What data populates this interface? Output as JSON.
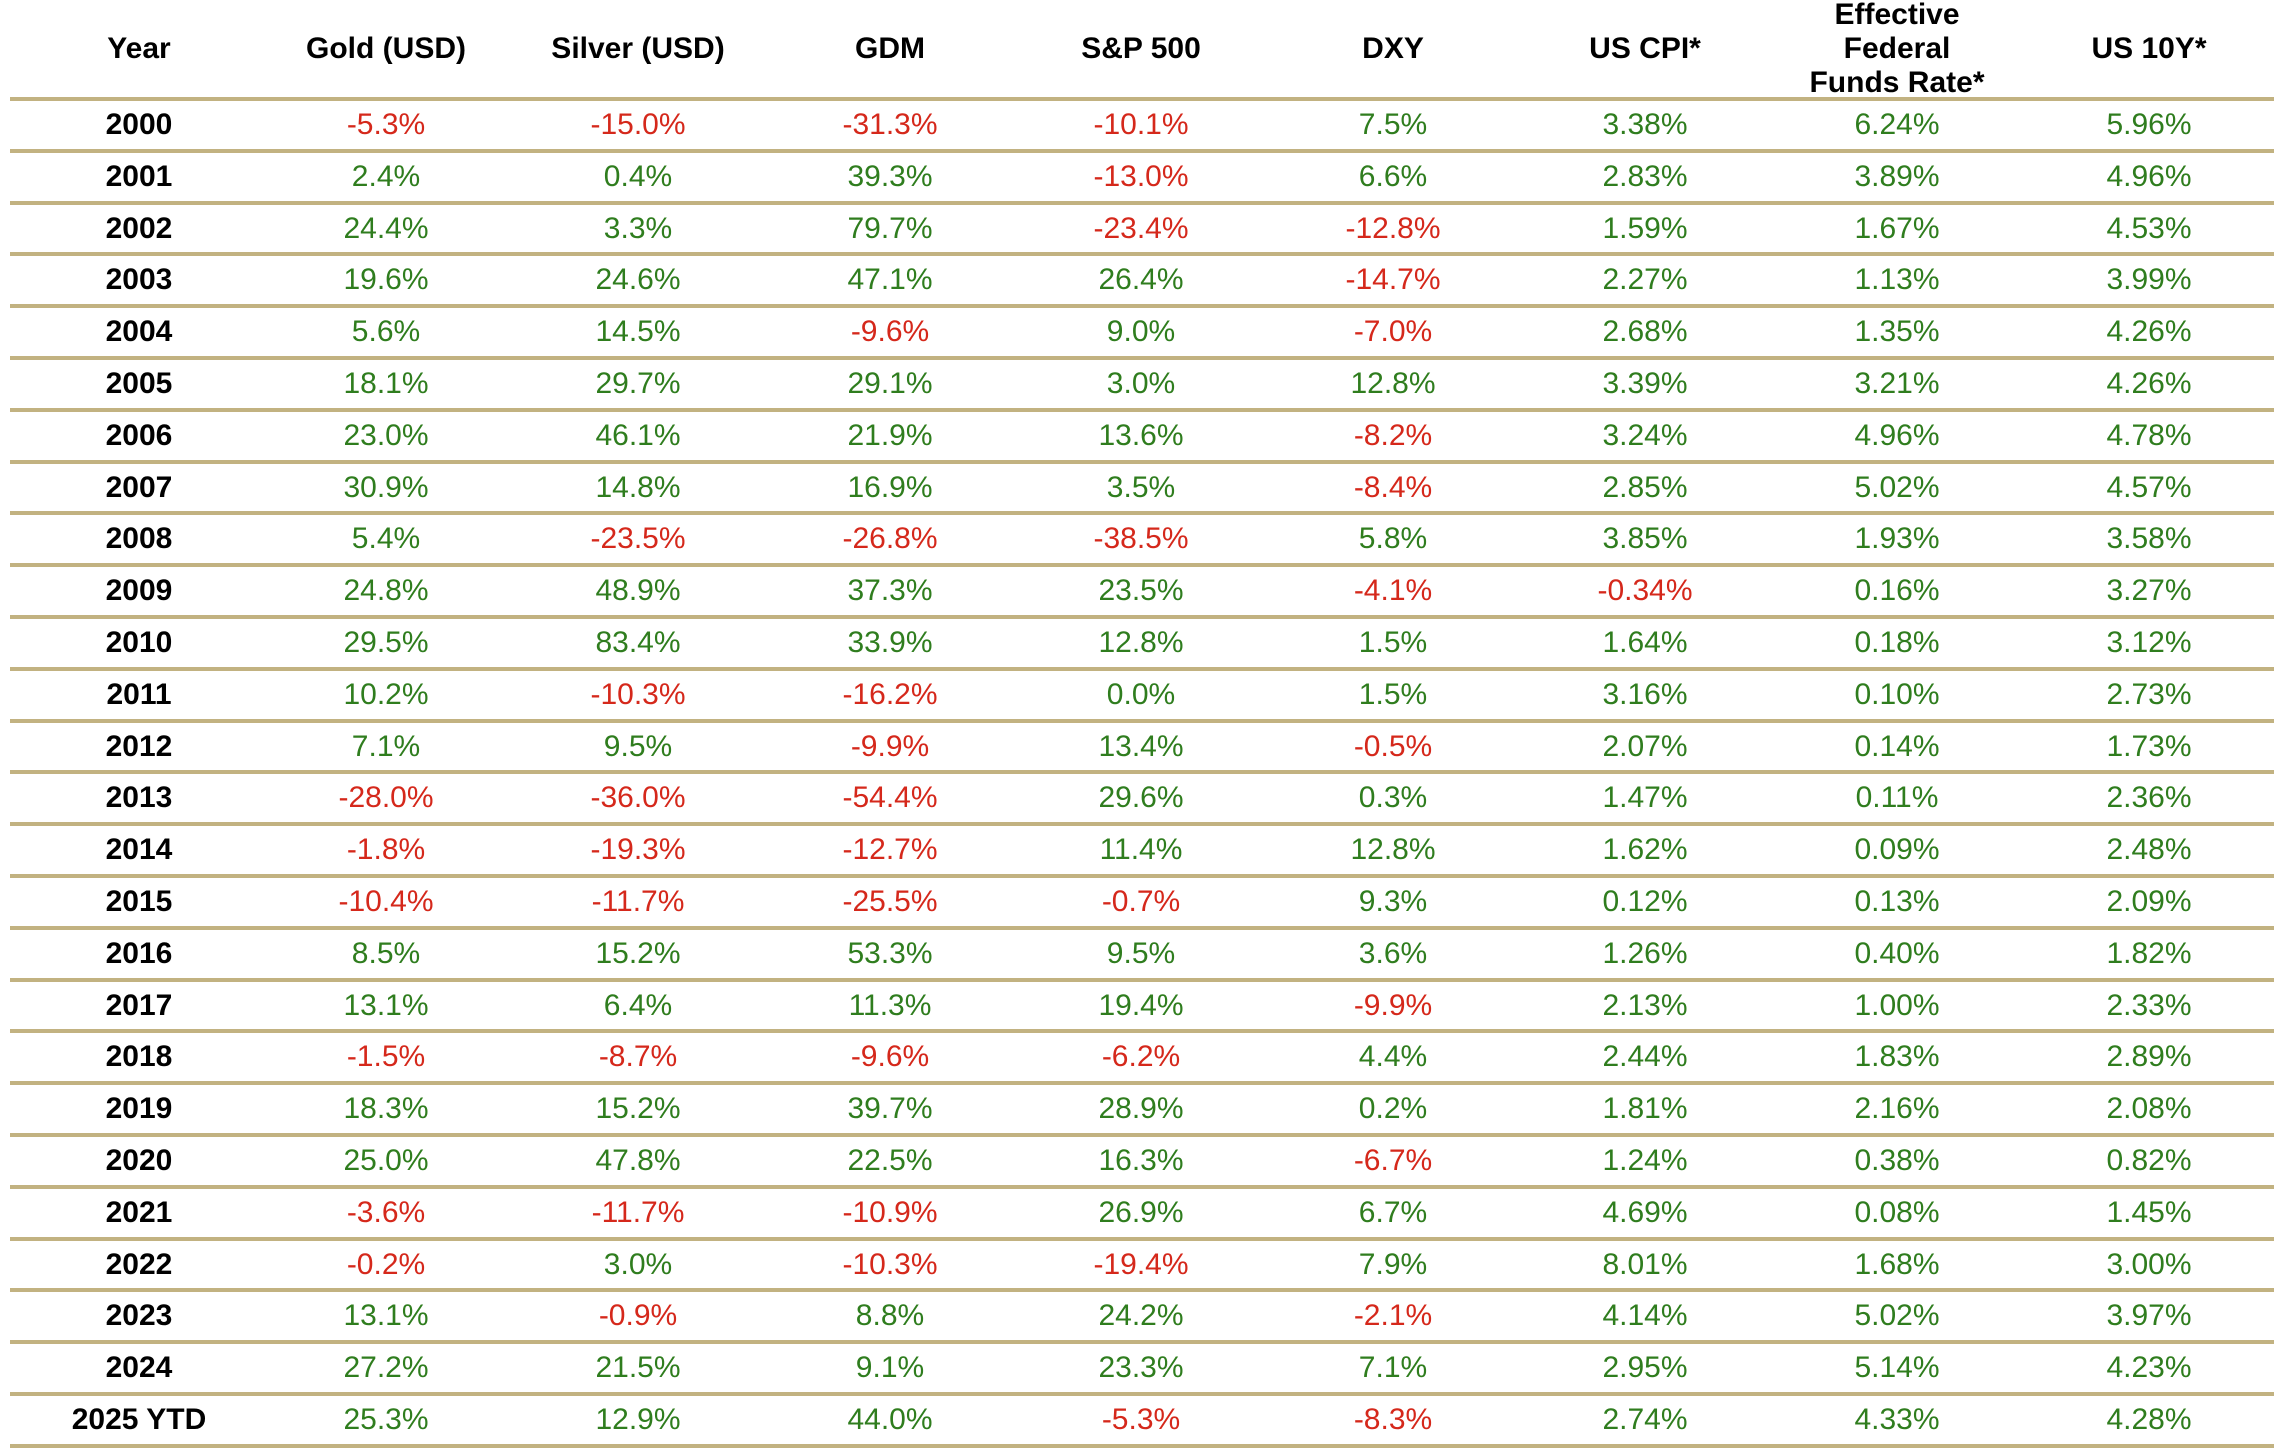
{
  "chart_data": {
    "type": "table",
    "title": "",
    "columns": [
      "Year",
      "Gold (USD)",
      "Silver (USD)",
      "GDM",
      "S&P 500",
      "DXY",
      "US CPI*",
      "Effective\nFederal\nFunds Rate*",
      "US 10Y*"
    ],
    "rows": [
      [
        "2000",
        "-5.3%",
        "-15.0%",
        "-31.3%",
        "-10.1%",
        "7.5%",
        "3.38%",
        "6.24%",
        "5.96%"
      ],
      [
        "2001",
        "2.4%",
        "0.4%",
        "39.3%",
        "-13.0%",
        "6.6%",
        "2.83%",
        "3.89%",
        "4.96%"
      ],
      [
        "2002",
        "24.4%",
        "3.3%",
        "79.7%",
        "-23.4%",
        "-12.8%",
        "1.59%",
        "1.67%",
        "4.53%"
      ],
      [
        "2003",
        "19.6%",
        "24.6%",
        "47.1%",
        "26.4%",
        "-14.7%",
        "2.27%",
        "1.13%",
        "3.99%"
      ],
      [
        "2004",
        "5.6%",
        "14.5%",
        "-9.6%",
        "9.0%",
        "-7.0%",
        "2.68%",
        "1.35%",
        "4.26%"
      ],
      [
        "2005",
        "18.1%",
        "29.7%",
        "29.1%",
        "3.0%",
        "12.8%",
        "3.39%",
        "3.21%",
        "4.26%"
      ],
      [
        "2006",
        "23.0%",
        "46.1%",
        "21.9%",
        "13.6%",
        "-8.2%",
        "3.24%",
        "4.96%",
        "4.78%"
      ],
      [
        "2007",
        "30.9%",
        "14.8%",
        "16.9%",
        "3.5%",
        "-8.4%",
        "2.85%",
        "5.02%",
        "4.57%"
      ],
      [
        "2008",
        "5.4%",
        "-23.5%",
        "-26.8%",
        "-38.5%",
        "5.8%",
        "3.85%",
        "1.93%",
        "3.58%"
      ],
      [
        "2009",
        "24.8%",
        "48.9%",
        "37.3%",
        "23.5%",
        "-4.1%",
        "-0.34%",
        "0.16%",
        "3.27%"
      ],
      [
        "2010",
        "29.5%",
        "83.4%",
        "33.9%",
        "12.8%",
        "1.5%",
        "1.64%",
        "0.18%",
        "3.12%"
      ],
      [
        "2011",
        "10.2%",
        "-10.3%",
        "-16.2%",
        "0.0%",
        "1.5%",
        "3.16%",
        "0.10%",
        "2.73%"
      ],
      [
        "2012",
        "7.1%",
        "9.5%",
        "-9.9%",
        "13.4%",
        "-0.5%",
        "2.07%",
        "0.14%",
        "1.73%"
      ],
      [
        "2013",
        "-28.0%",
        "-36.0%",
        "-54.4%",
        "29.6%",
        "0.3%",
        "1.47%",
        "0.11%",
        "2.36%"
      ],
      [
        "2014",
        "-1.8%",
        "-19.3%",
        "-12.7%",
        "11.4%",
        "12.8%",
        "1.62%",
        "0.09%",
        "2.48%"
      ],
      [
        "2015",
        "-10.4%",
        "-11.7%",
        "-25.5%",
        "-0.7%",
        "9.3%",
        "0.12%",
        "0.13%",
        "2.09%"
      ],
      [
        "2016",
        "8.5%",
        "15.2%",
        "53.3%",
        "9.5%",
        "3.6%",
        "1.26%",
        "0.40%",
        "1.82%"
      ],
      [
        "2017",
        "13.1%",
        "6.4%",
        "11.3%",
        "19.4%",
        "-9.9%",
        "2.13%",
        "1.00%",
        "2.33%"
      ],
      [
        "2018",
        "-1.5%",
        "-8.7%",
        "-9.6%",
        "-6.2%",
        "4.4%",
        "2.44%",
        "1.83%",
        "2.89%"
      ],
      [
        "2019",
        "18.3%",
        "15.2%",
        "39.7%",
        "28.9%",
        "0.2%",
        "1.81%",
        "2.16%",
        "2.08%"
      ],
      [
        "2020",
        "25.0%",
        "47.8%",
        "22.5%",
        "16.3%",
        "-6.7%",
        "1.24%",
        "0.38%",
        "0.82%"
      ],
      [
        "2021",
        "-3.6%",
        "-11.7%",
        "-10.9%",
        "26.9%",
        "6.7%",
        "4.69%",
        "0.08%",
        "1.45%"
      ],
      [
        "2022",
        "-0.2%",
        "3.0%",
        "-10.3%",
        "-19.4%",
        "7.9%",
        "8.01%",
        "1.68%",
        "3.00%"
      ],
      [
        "2023",
        "13.1%",
        "-0.9%",
        "8.8%",
        "24.2%",
        "-2.1%",
        "4.14%",
        "5.02%",
        "3.97%"
      ],
      [
        "2024",
        "27.2%",
        "21.5%",
        "9.1%",
        "23.3%",
        "7.1%",
        "2.95%",
        "5.14%",
        "4.23%"
      ],
      [
        "2025 YTD",
        "25.3%",
        "12.9%",
        "44.0%",
        "-5.3%",
        "-8.3%",
        "2.74%",
        "4.33%",
        "4.28%"
      ]
    ]
  },
  "colors": {
    "positive": "#2f7d1e",
    "negative": "#d5281b",
    "rule": "#c2b281",
    "header_text": "#000000"
  }
}
